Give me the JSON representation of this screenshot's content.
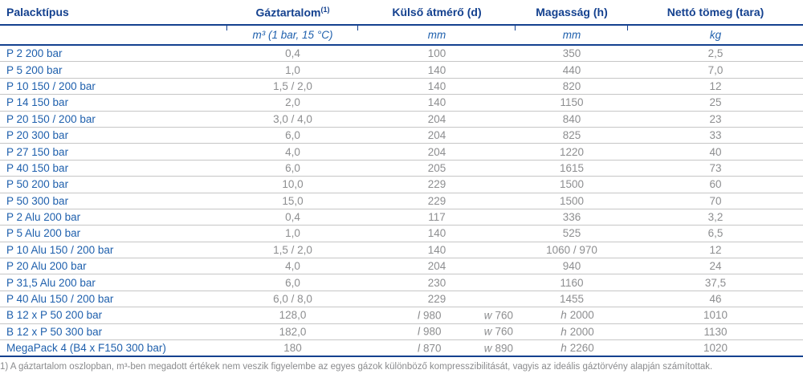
{
  "header": {
    "columns": [
      {
        "label": "Palacktípus",
        "sup": "",
        "unit": ""
      },
      {
        "label": "Gáztartalom",
        "sup": "(1)",
        "unit": "m³ (1 bar, 15 °C)"
      },
      {
        "label": "Külső átmérő (d)",
        "sup": "",
        "unit": "mm"
      },
      {
        "label": "Magasság (h)",
        "sup": "",
        "unit": "mm"
      },
      {
        "label": "Nettó tömeg (tara)",
        "sup": "",
        "unit": "kg"
      }
    ]
  },
  "rows": [
    {
      "type": "P 2 200 bar",
      "content": "0,4",
      "d": "100",
      "h": "350",
      "kg": "2,5"
    },
    {
      "type": "P 5 200 bar",
      "content": "1,0",
      "d": "140",
      "h": "440",
      "kg": "7,0"
    },
    {
      "type": "P 10 150 / 200 bar",
      "content": "1,5 / 2,0",
      "d": "140",
      "h": "820",
      "kg": "12"
    },
    {
      "type": "P 14 150 bar",
      "content": "2,0",
      "d": "140",
      "h": "1150",
      "kg": "25"
    },
    {
      "type": "P 20 150 / 200 bar",
      "content": "3,0 / 4,0",
      "d": "204",
      "h": "840",
      "kg": "23"
    },
    {
      "type": "P 20 300 bar",
      "content": "6,0",
      "d": "204",
      "h": "825",
      "kg": "33"
    },
    {
      "type": "P 27 150 bar",
      "content": "4,0",
      "d": "204",
      "h": "1220",
      "kg": "40"
    },
    {
      "type": "P 40 150 bar",
      "content": "6,0",
      "d": "205",
      "h": "1615",
      "kg": "73"
    },
    {
      "type": "P 50 200 bar",
      "content": "10,0",
      "d": "229",
      "h": "1500",
      "kg": "60"
    },
    {
      "type": "P 50 300 bar",
      "content": "15,0",
      "d": "229",
      "h": "1500",
      "kg": "70"
    },
    {
      "type": "P 2 Alu 200 bar",
      "content": "0,4",
      "d": "117",
      "h": "336",
      "kg": "3,2"
    },
    {
      "type": "P 5 Alu 200 bar",
      "content": "1,0",
      "d": "140",
      "h": "525",
      "kg": "6,5"
    },
    {
      "type": "P 10 Alu 150 / 200 bar",
      "content": "1,5 / 2,0",
      "d": "140",
      "h": "1060 / 970",
      "kg": "12"
    },
    {
      "type": "P 20 Alu 200 bar",
      "content": "4,0",
      "d": "204",
      "h": "940",
      "kg": "24"
    },
    {
      "type": "P 31,5 Alu 200 bar",
      "content": "6,0",
      "d": "230",
      "h": "1160",
      "kg": "37,5"
    },
    {
      "type": "P 40 Alu 150 / 200 bar",
      "content": "6,0 / 8,0",
      "d": "229",
      "h": "1455",
      "kg": "46"
    }
  ],
  "bundle_rows": [
    {
      "type": "B 12 x P 50 200 bar",
      "content": "128,0",
      "l_label": "l",
      "l_value": "980",
      "w_label": "w",
      "w_value": "760",
      "h_label": "h",
      "h_value": "2000",
      "kg": "1010"
    },
    {
      "type": "B 12 x P 50 300 bar",
      "content": "182,0",
      "l_label": "l",
      "l_value": "980",
      "w_label": "w",
      "w_value": "760",
      "h_label": "h",
      "h_value": "2000",
      "kg": "1130"
    },
    {
      "type": "MegaPack 4 (B4 x F150 300 bar)",
      "content": "180",
      "l_label": "l",
      "l_value": "870",
      "w_label": "w",
      "w_value": "890",
      "h_label": "h",
      "h_value": "2260",
      "kg": "1020"
    }
  ],
  "footnote": "1) A gáztartalom oszlopban, m³-ben megadott értékek nem veszik figyelembe az egyes gázok különböző kompresszibilitását, vagyis az ideális gáztörvény alapján számítottak.",
  "colors": {
    "header_navy": "#14418f",
    "row_blue": "#1f60ad",
    "value_gray": "#8d8e90",
    "separator_gray": "#c6c6c6"
  }
}
